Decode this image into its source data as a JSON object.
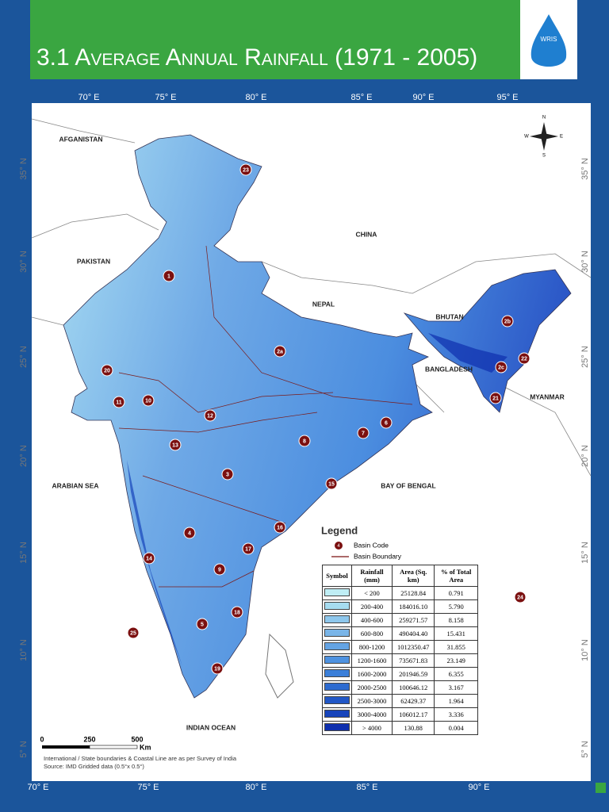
{
  "header": {
    "title": "3.1 Average Annual Rainfall (1971 - 2005)",
    "logo": "WRIS"
  },
  "map": {
    "longitude_labels": [
      "70° E",
      "75° E",
      "80° E",
      "85° E",
      "90° E",
      "95° E"
    ],
    "latitude_labels": [
      "35° N",
      "30° N",
      "25° N",
      "20° N",
      "15° N",
      "10° N",
      "5° N"
    ],
    "place_labels": [
      "AFGANISTAN",
      "PAKISTAN",
      "CHINA",
      "NEPAL",
      "BHUTAN",
      "BANGLADESH",
      "MYANMAR",
      "ARABIAN SEA",
      "BAY OF BENGAL",
      "INDIAN OCEAN"
    ],
    "compass": [
      "N",
      "E",
      "S",
      "W"
    ],
    "basin_codes": [
      "1",
      "2a",
      "2b",
      "2c",
      "3",
      "4",
      "5",
      "6",
      "7",
      "8",
      "9",
      "10",
      "11",
      "12",
      "13",
      "14",
      "15",
      "16",
      "17",
      "18",
      "19",
      "20",
      "21",
      "22",
      "23",
      "24",
      "25"
    ]
  },
  "legend": {
    "title": "Legend",
    "basin_code_marker": "4",
    "basin_code": "Basin Code",
    "basin_boundary": "Basin Boundary",
    "columns": [
      "Symbol",
      "Rainfall (mm)",
      "Area (Sq. km)",
      "% of Total Area"
    ],
    "colors": [
      "#bfeef5",
      "#a6dcf0",
      "#8ec7ec",
      "#79b5e8",
      "#64a4e4",
      "#4e92e0",
      "#3b7fd9",
      "#2d6bd0",
      "#2157c6",
      "#1744bb",
      "#0e2fae"
    ],
    "rows": [
      [
        "< 200",
        "25128.84",
        "0.791"
      ],
      [
        "200-400",
        "184016.10",
        "5.790"
      ],
      [
        "400-600",
        "259271.57",
        "8.158"
      ],
      [
        "600-800",
        "490404.40",
        "15.431"
      ],
      [
        "800-1200",
        "1012350.47",
        "31.855"
      ],
      [
        "1200-1600",
        "735671.83",
        "23.149"
      ],
      [
        "1600-2000",
        "201946.59",
        "6.355"
      ],
      [
        "2000-2500",
        "100646.12",
        "3.167"
      ],
      [
        "2500-3000",
        "62429.37",
        "1.964"
      ],
      [
        "3000-4000",
        "106012.17",
        "3.336"
      ],
      [
        "> 4000",
        "130.88",
        "0.004"
      ]
    ]
  },
  "scale": {
    "ticks": [
      "0",
      "250",
      "500"
    ],
    "unit": "Km"
  },
  "notes": [
    "International / State boundaries & Coastal Line are as per Survey of India",
    "Source: IMD Gridded data (0.5°x 0.5°)"
  ]
}
